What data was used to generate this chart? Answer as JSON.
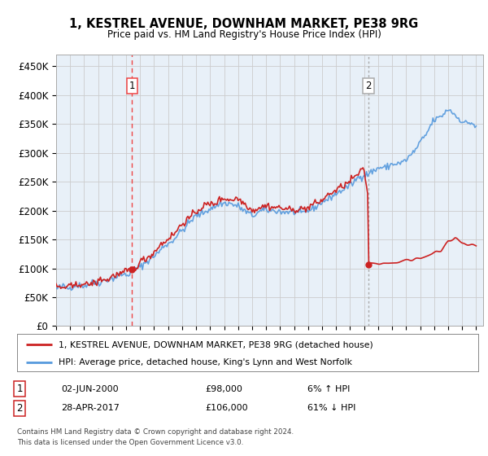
{
  "title": "1, KESTREL AVENUE, DOWNHAM MARKET, PE38 9RG",
  "subtitle": "Price paid vs. HM Land Registry's House Price Index (HPI)",
  "legend_line1": "1, KESTREL AVENUE, DOWNHAM MARKET, PE38 9RG (detached house)",
  "legend_line2": "HPI: Average price, detached house, King's Lynn and West Norfolk",
  "footnote1": "Contains HM Land Registry data © Crown copyright and database right 2024.",
  "footnote2": "This data is licensed under the Open Government Licence v3.0.",
  "transaction1_label": "1",
  "transaction1_date": "02-JUN-2000",
  "transaction1_price": "£98,000",
  "transaction1_hpi": "6% ↑ HPI",
  "transaction2_label": "2",
  "transaction2_date": "28-APR-2017",
  "transaction2_price": "£106,000",
  "transaction2_hpi": "61% ↓ HPI",
  "red_color": "#cc2222",
  "blue_color": "#5599dd",
  "vline1_color": "#ee4444",
  "vline2_color": "#aaaaaa",
  "grid_color": "#cccccc",
  "bg_chart": "#e8f0f8",
  "background_color": "#ffffff",
  "ylim_min": 0,
  "ylim_max": 470000,
  "yticks": [
    0,
    50000,
    100000,
    150000,
    200000,
    250000,
    300000,
    350000,
    400000,
    450000
  ],
  "ytick_labels": [
    "£0",
    "£50K",
    "£100K",
    "£150K",
    "£200K",
    "£250K",
    "£300K",
    "£350K",
    "£400K",
    "£450K"
  ],
  "transaction1_x": 2000.42,
  "transaction1_y": 98000,
  "transaction2_x": 2017.32,
  "transaction2_y": 106000,
  "vline1_x": 2000.42,
  "vline2_x": 2017.32,
  "xlim_min": 1995,
  "xlim_max": 2025.5
}
